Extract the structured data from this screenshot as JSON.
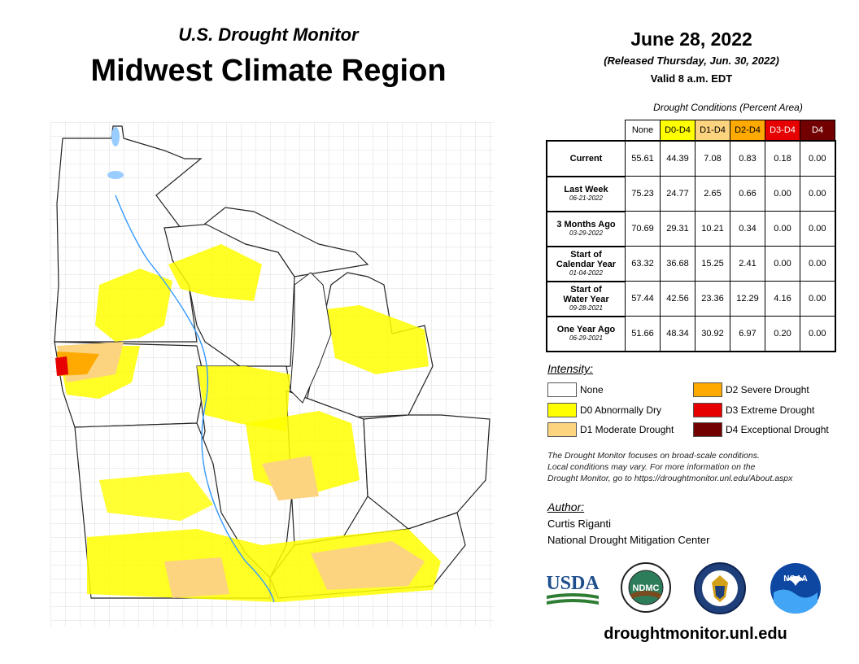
{
  "header": {
    "subtitle": "U.S. Drought Monitor",
    "title": "Midwest Climate Region"
  },
  "map_info": {
    "date": "June 28, 2022",
    "released": "(Released Thursday, Jun. 30, 2022)",
    "valid": "Valid 8 a.m. EDT"
  },
  "table": {
    "caption": "Drought Conditions (Percent Area)",
    "columns": [
      {
        "label": "None",
        "color": "#ffffff",
        "text_color": "#000000"
      },
      {
        "label": "D0-D4",
        "color": "#ffff00",
        "text_color": "#000000"
      },
      {
        "label": "D1-D4",
        "color": "#fcd37f",
        "text_color": "#000000"
      },
      {
        "label": "D2-D4",
        "color": "#ffaa00",
        "text_color": "#000000"
      },
      {
        "label": "D3-D4",
        "color": "#e60000",
        "text_color": "#ffffff"
      },
      {
        "label": "D4",
        "color": "#730000",
        "text_color": "#ffffff"
      }
    ],
    "rows": [
      {
        "label": "Current",
        "label2": "",
        "date": "",
        "values": [
          "55.61",
          "44.39",
          "7.08",
          "0.83",
          "0.18",
          "0.00"
        ]
      },
      {
        "label": "Last Week",
        "label2": "",
        "date": "06-21-2022",
        "values": [
          "75.23",
          "24.77",
          "2.65",
          "0.66",
          "0.00",
          "0.00"
        ]
      },
      {
        "label": "3 Months Ago",
        "label2": "",
        "date": "03-29-2022",
        "values": [
          "70.69",
          "29.31",
          "10.21",
          "0.34",
          "0.00",
          "0.00"
        ]
      },
      {
        "label": "Start of",
        "label2": "Calendar Year",
        "date": "01-04-2022",
        "values": [
          "63.32",
          "36.68",
          "15.25",
          "2.41",
          "0.00",
          "0.00"
        ]
      },
      {
        "label": "Start of",
        "label2": "Water Year",
        "date": "09-28-2021",
        "values": [
          "57.44",
          "42.56",
          "23.36",
          "12.29",
          "4.16",
          "0.00"
        ]
      },
      {
        "label": "One Year Ago",
        "label2": "",
        "date": "06-29-2021",
        "values": [
          "51.66",
          "48.34",
          "30.92",
          "6.97",
          "0.20",
          "0.00"
        ]
      }
    ]
  },
  "legend": {
    "title": "Intensity:",
    "items": [
      {
        "label": "None",
        "color": "#ffffff"
      },
      {
        "label": "D0 Abnormally Dry",
        "color": "#ffff00"
      },
      {
        "label": "D1 Moderate Drought",
        "color": "#fcd37f"
      },
      {
        "label": "D2 Severe Drought",
        "color": "#ffaa00"
      },
      {
        "label": "D3 Extreme Drought",
        "color": "#e60000"
      },
      {
        "label": "D4 Exceptional Drought",
        "color": "#730000"
      }
    ]
  },
  "note": {
    "line1": "The Drought Monitor focuses on broad-scale conditions.",
    "line2": "Local conditions may vary. For more information on the",
    "line3": "Drought Monitor, go to https://droughtmonitor.unl.edu/About.aspx"
  },
  "author": {
    "title": "Author:",
    "name": "Curtis Riganti",
    "org": "National Drought Mitigation Center"
  },
  "logos": {
    "usda": "USDA",
    "ndmc": "NDMC",
    "noaa": "NOAA"
  },
  "website": "droughtmonitor.unl.edu",
  "map_colors": {
    "water": "#99ccff",
    "river": "#3399ff",
    "d0": "#ffff00",
    "d1": "#fcd37f",
    "d2": "#ffaa00",
    "d3": "#e60000"
  }
}
